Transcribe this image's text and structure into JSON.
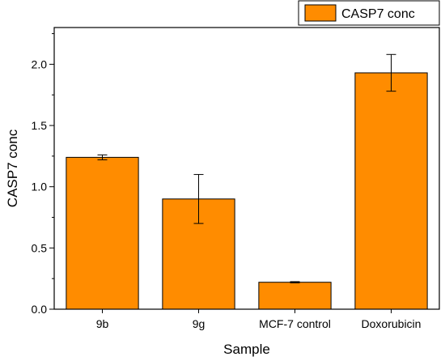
{
  "chart_data": {
    "type": "bar",
    "categories": [
      "9b",
      "9g",
      "MCF-7 control",
      "Doxorubicin"
    ],
    "series": [
      {
        "name": "CASP7 conc",
        "values": [
          1.24,
          0.9,
          0.22,
          1.93
        ],
        "error": [
          0.02,
          0.2,
          0.005,
          0.15
        ]
      }
    ],
    "xlabel": "Sample",
    "ylabel": "CASP7 conc",
    "ylim": [
      0,
      2.3
    ],
    "yticks": [
      0.0,
      0.5,
      1.0,
      1.5,
      2.0
    ],
    "ytick_labels": [
      "0.0",
      "0.5",
      "1.0",
      "1.5",
      "2.0"
    ],
    "legend_position": "top-right",
    "grid": false,
    "colors": {
      "bar_fill": "#FF8C00",
      "bar_stroke": "#000000"
    }
  }
}
